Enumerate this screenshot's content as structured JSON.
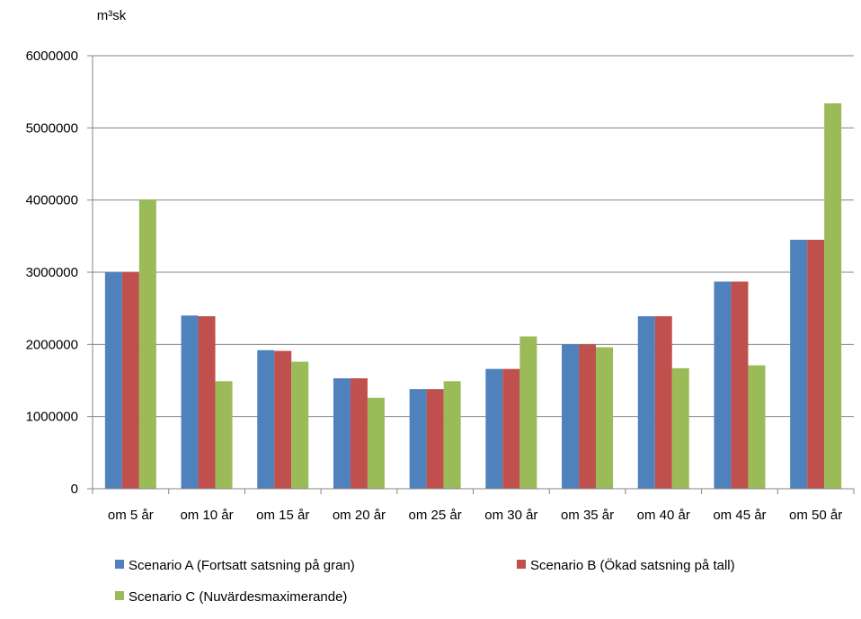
{
  "chart_data": {
    "type": "bar",
    "ylabel": "m³sk",
    "ylim": [
      0,
      6000000
    ],
    "yticks": [
      0,
      1000000,
      2000000,
      3000000,
      4000000,
      5000000,
      6000000
    ],
    "ytick_labels": [
      "0",
      "1000000",
      "2000000",
      "3000000",
      "4000000",
      "5000000",
      "6000000"
    ],
    "grid": true,
    "legend_position": "bottom",
    "categories": [
      "om 5 år",
      "om 10 år",
      "om 15 år",
      "om 20 år",
      "om 25 år",
      "om 30 år",
      "om 35 år",
      "om 40 år",
      "om 45 år",
      "om 50 år"
    ],
    "series": [
      {
        "name": "Scenario A (Fortsatt satsning på gran)",
        "color": "#4F81BD",
        "values": [
          3000000,
          2400000,
          1920000,
          1530000,
          1380000,
          1660000,
          2000000,
          2390000,
          2870000,
          3450000
        ]
      },
      {
        "name": "Scenario B (Ökad satsning på tall)",
        "color": "#C0504D",
        "values": [
          3000000,
          2390000,
          1910000,
          1530000,
          1380000,
          1660000,
          2000000,
          2390000,
          2870000,
          3450000
        ]
      },
      {
        "name": "Scenario C (Nuvärdesmaximerande)",
        "color": "#9BBB59",
        "values": [
          4010000,
          1490000,
          1760000,
          1260000,
          1490000,
          2110000,
          1960000,
          1670000,
          1710000,
          5340000
        ]
      }
    ]
  }
}
